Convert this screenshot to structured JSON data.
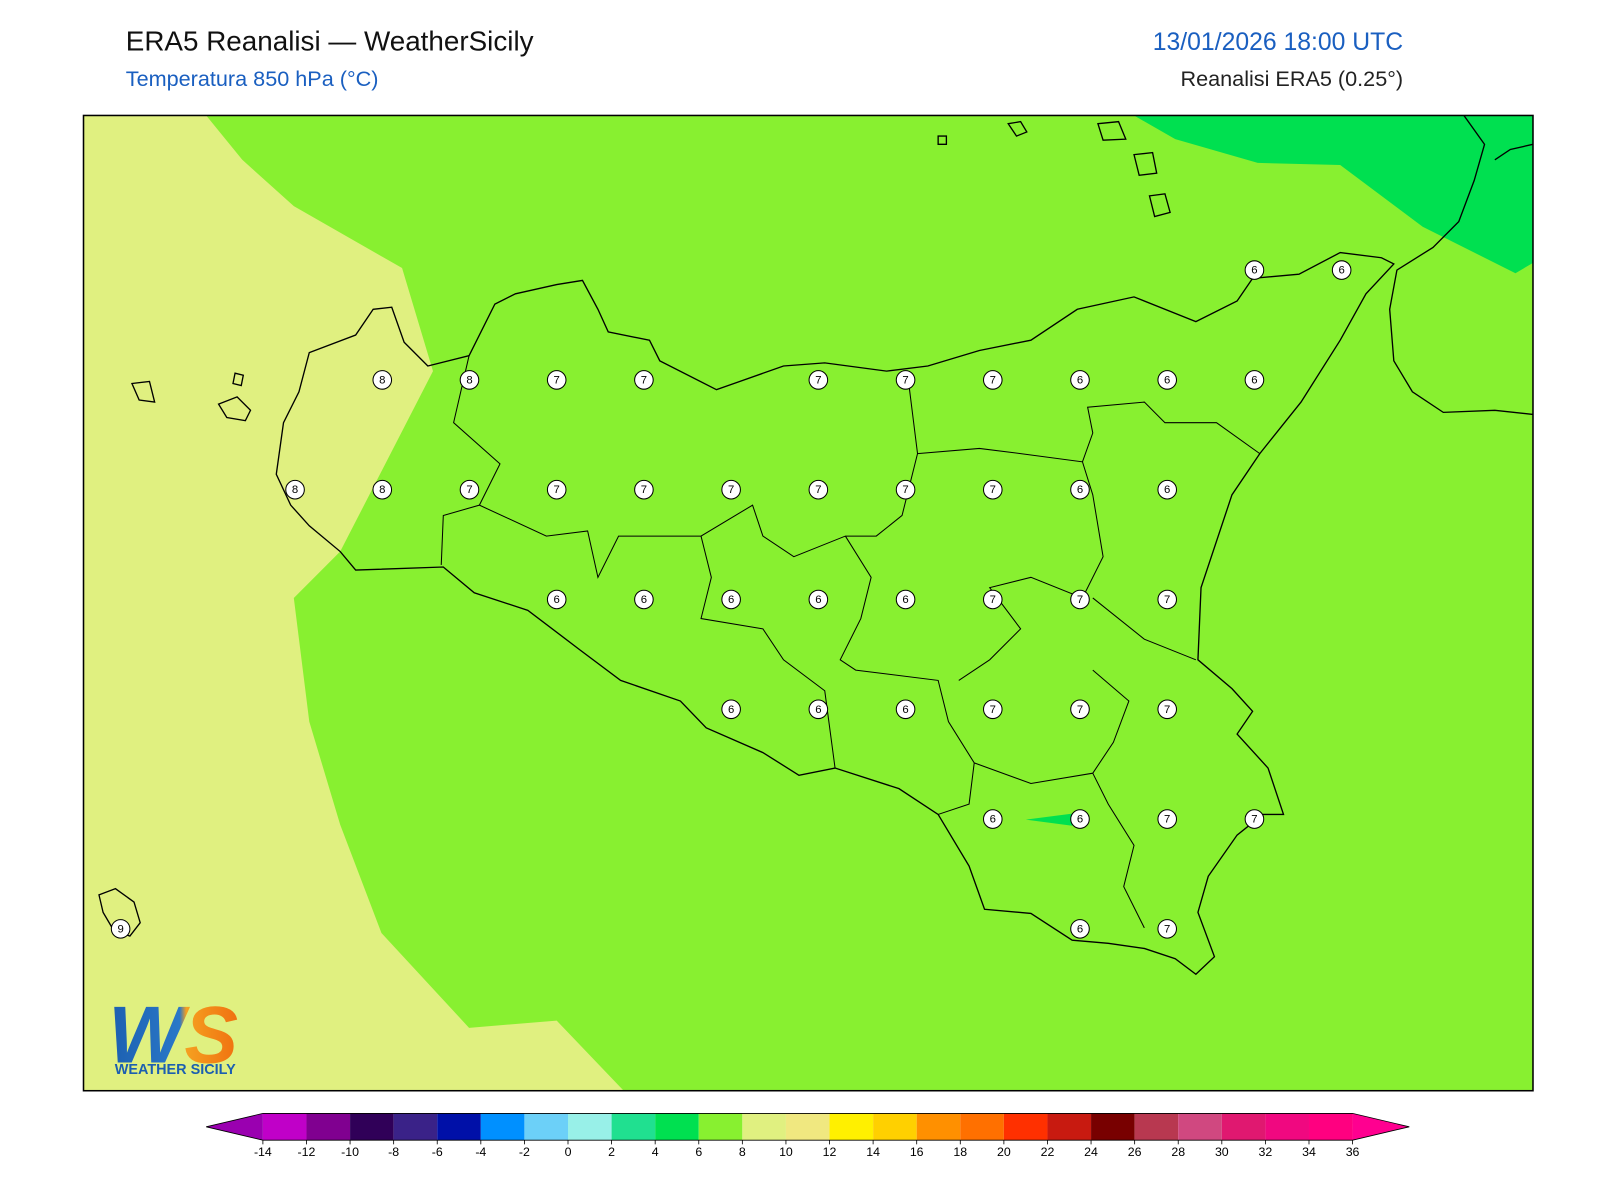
{
  "header": {
    "title": "ERA5 Reanalisi — WeatherSicily",
    "subtitle": "Temperatura 850 hPa (°C)",
    "datetime": "13/01/2026 18:00 UTC",
    "source": "Reanalisi ERA5 (0.25°)"
  },
  "map": {
    "grid": [
      [
        null,
        null,
        null,
        null,
        null,
        null,
        null,
        null,
        null,
        null,
        null,
        null,
        null,
        6,
        6
      ],
      [
        null,
        null,
        null,
        8,
        8,
        7,
        7,
        null,
        7,
        7,
        7,
        6,
        6,
        6,
        null
      ],
      [
        null,
        null,
        8,
        8,
        7,
        7,
        7,
        7,
        7,
        7,
        7,
        6,
        6,
        null,
        null
      ],
      [
        null,
        null,
        null,
        null,
        null,
        6,
        6,
        6,
        6,
        6,
        7,
        7,
        7,
        null,
        null
      ],
      [
        null,
        null,
        null,
        null,
        null,
        null,
        null,
        6,
        6,
        6,
        7,
        7,
        7,
        null,
        null
      ],
      [
        null,
        null,
        null,
        null,
        null,
        null,
        null,
        null,
        null,
        null,
        6,
        6,
        7,
        7,
        null
      ],
      [
        9,
        null,
        null,
        null,
        null,
        null,
        null,
        null,
        null,
        null,
        null,
        6,
        7,
        null,
        null
      ]
    ]
  },
  "colorbar": {
    "ticks": [
      -14,
      -12,
      -10,
      -8,
      -6,
      -4,
      -2,
      0,
      2,
      4,
      6,
      8,
      10,
      12,
      14,
      16,
      18,
      20,
      22,
      24,
      26,
      28,
      30,
      32,
      34,
      36
    ],
    "colors": [
      "#c000c8",
      "#800090",
      "#300058",
      "#3a2288",
      "#0010a8",
      "#0090ff",
      "#6cd0f8",
      "#98f0e8",
      "#20e090",
      "#00e050",
      "#88f030",
      "#e0f080",
      "#f0e880",
      "#fff000",
      "#ffd000",
      "#ff9000",
      "#ff7000",
      "#ff3000",
      "#c81a10",
      "#780000",
      "#b83850",
      "#d04880",
      "#e01870",
      "#f00880",
      "#ff0080"
    ],
    "under_color": "#9a00b0",
    "over_color": "#ff0090"
  },
  "logo": {
    "mark": "WS",
    "name": "WEATHER SICILY"
  }
}
